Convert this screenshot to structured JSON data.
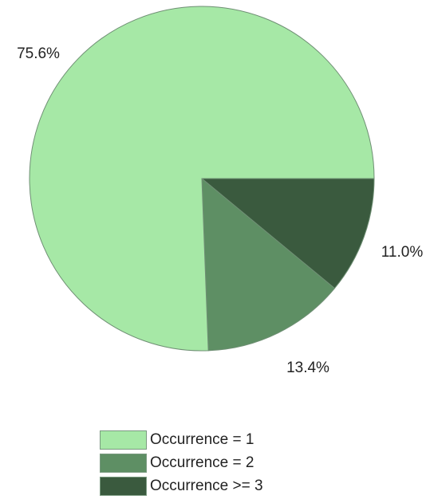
{
  "chart_data": {
    "type": "pie",
    "title": "",
    "slices": [
      {
        "label": "Occurrence = 1",
        "value": 75.6,
        "display": "75.6%",
        "color": "#a6e8a6"
      },
      {
        "label": "Occurrence = 2",
        "value": 13.4,
        "display": "13.4%",
        "color": "#5e8f64"
      },
      {
        "label": "Occurrence >= 3",
        "value": 11.0,
        "display": "11.0%",
        "color": "#3a5a3e"
      }
    ],
    "start_angle": "3 o'clock, clockwise",
    "legend_position": "bottom-center"
  }
}
